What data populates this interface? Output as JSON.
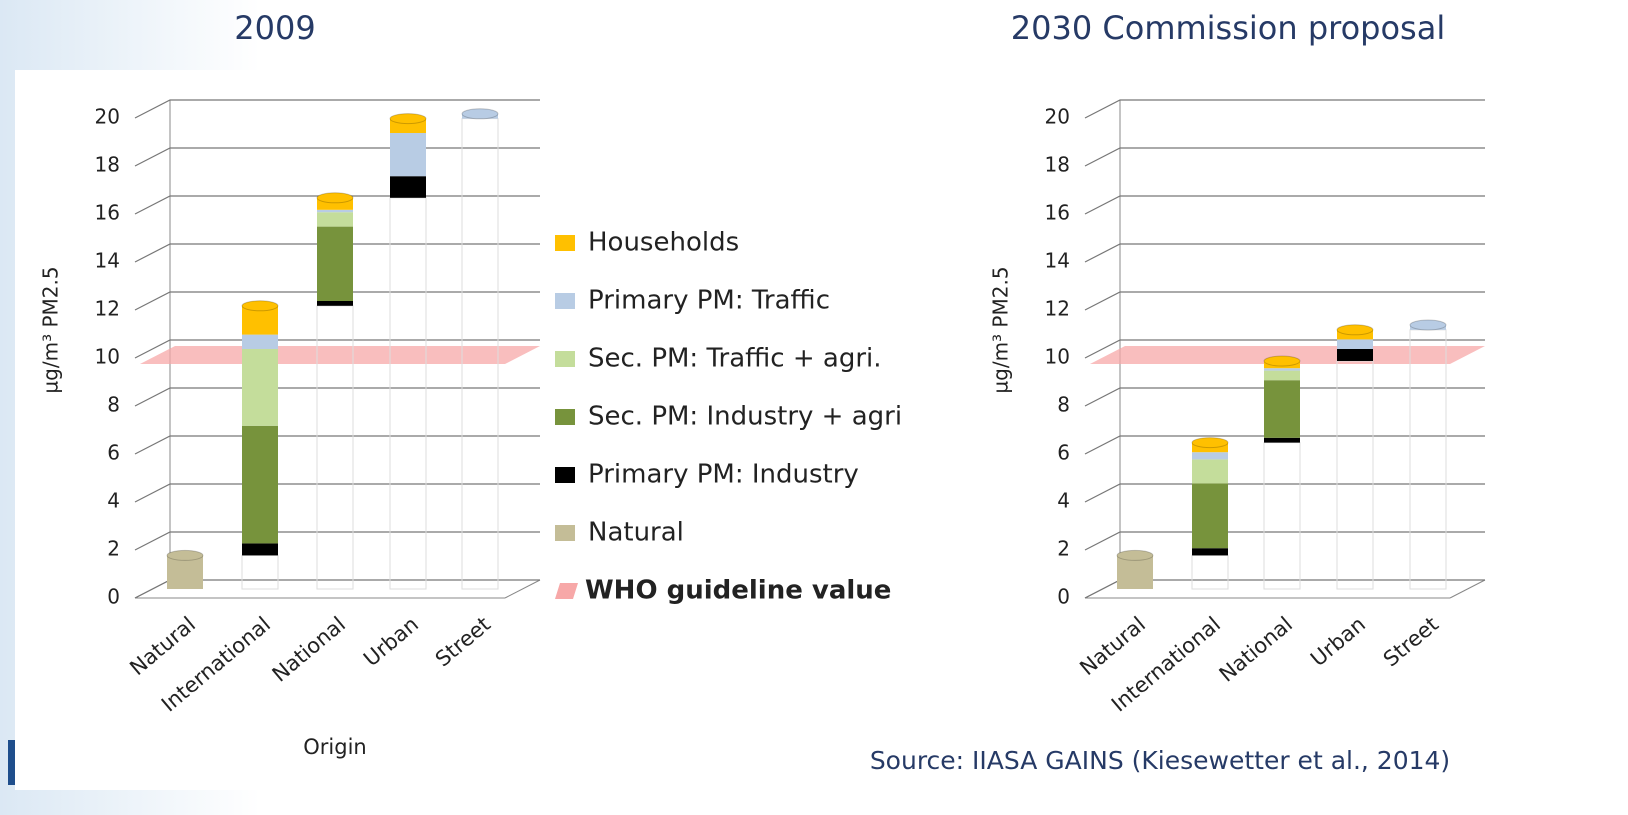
{
  "source": "Source: IIASA GAINS (Kiesewetter et al., 2014)",
  "chart_data": [
    {
      "type": "waterfall",
      "title": "2009",
      "y_label": "µg/m³ PM2.5",
      "x_label": "Origin",
      "categories": [
        "Natural",
        "International",
        "National",
        "Urban",
        "Street"
      ],
      "ylim": [
        0,
        20
      ],
      "yticks": [
        0,
        2,
        4,
        6,
        8,
        10,
        12,
        14,
        16,
        18,
        20
      ],
      "grid": true,
      "series": [
        {
          "name": "Natural",
          "color": "#c4bd97",
          "values": [
            1.4,
            0,
            0,
            0,
            0
          ]
        },
        {
          "name": "Primary PM: Industry",
          "color": "#000000",
          "values": [
            0,
            0.5,
            0.2,
            0.9,
            0
          ]
        },
        {
          "name": "Sec. PM: Industry + agri",
          "color": "#77933c",
          "values": [
            0,
            4.9,
            3.1,
            0,
            0
          ]
        },
        {
          "name": "Sec. PM: Traffic + agri.",
          "color": "#c4dd9b",
          "values": [
            0,
            3.2,
            0.6,
            0,
            0
          ]
        },
        {
          "name": "Primary PM: Traffic",
          "color": "#b8cce4",
          "values": [
            0,
            0.6,
            0.1,
            1.8,
            0.2
          ]
        },
        {
          "name": "Households",
          "color": "#ffc000",
          "values": [
            0,
            1.2,
            0.5,
            0.6,
            0
          ]
        }
      ],
      "who_guideline": {
        "label": "WHO guideline value",
        "value": 10,
        "color": "#f7a8a8"
      }
    },
    {
      "type": "waterfall",
      "title": "2030 Commission proposal",
      "y_label": "µg/m³ PM2.5",
      "categories": [
        "Natural",
        "International",
        "National",
        "Urban",
        "Street"
      ],
      "ylim": [
        0,
        20
      ],
      "yticks": [
        0,
        2,
        4,
        6,
        8,
        10,
        12,
        14,
        16,
        18,
        20
      ],
      "grid": true,
      "series": [
        {
          "color": "#c4bd97",
          "values": [
            1.4,
            0,
            0,
            0,
            0
          ]
        },
        {
          "color": "#000000",
          "values": [
            0,
            0.3,
            0.2,
            0.5,
            0
          ]
        },
        {
          "color": "#77933c",
          "values": [
            0,
            2.7,
            2.4,
            0,
            0
          ]
        },
        {
          "color": "#c4dd9b",
          "values": [
            0,
            1.0,
            0.4,
            0,
            0
          ]
        },
        {
          "color": "#b8cce4",
          "values": [
            0,
            0.3,
            0.1,
            0.4,
            0.2
          ]
        },
        {
          "color": "#ffc000",
          "values": [
            0,
            0.4,
            0.3,
            0.4,
            0
          ]
        }
      ],
      "who_guideline": {
        "value": 10,
        "color": "#f7a8a8"
      }
    }
  ]
}
